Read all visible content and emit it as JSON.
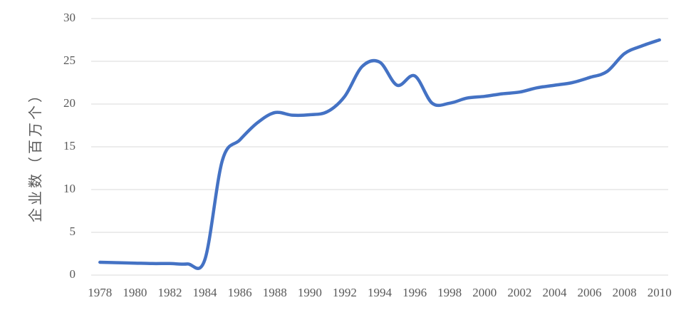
{
  "chart_data": {
    "type": "line",
    "y_label": "企业数（百万个）",
    "categories": [
      "1978",
      null,
      "1980",
      null,
      "1982",
      null,
      "1984",
      null,
      "1986",
      null,
      "1988",
      null,
      "1990",
      null,
      "1992",
      null,
      "1994",
      null,
      "1996",
      null,
      "1998",
      null,
      "2000",
      null,
      "2002",
      null,
      "2004",
      null,
      "2006",
      null,
      "2008",
      null,
      "2010"
    ],
    "series": [
      {
        "color": "#4472c4",
        "values": [
          1.5,
          1.45,
          1.4,
          1.35,
          1.35,
          1.3,
          1.8,
          13.4,
          15.8,
          17.8,
          19.0,
          18.7,
          18.75,
          19.1,
          20.9,
          24.4,
          24.9,
          22.2,
          23.3,
          20.1,
          20.1,
          20.7,
          20.9,
          21.2,
          21.4,
          21.9,
          22.2,
          22.5,
          23.1,
          23.8,
          25.9,
          26.8,
          27.5
        ]
      }
    ],
    "ylim": [
      0,
      30
    ],
    "yticks": [
      0,
      5,
      10,
      15,
      20,
      25,
      30
    ],
    "grid": true
  }
}
